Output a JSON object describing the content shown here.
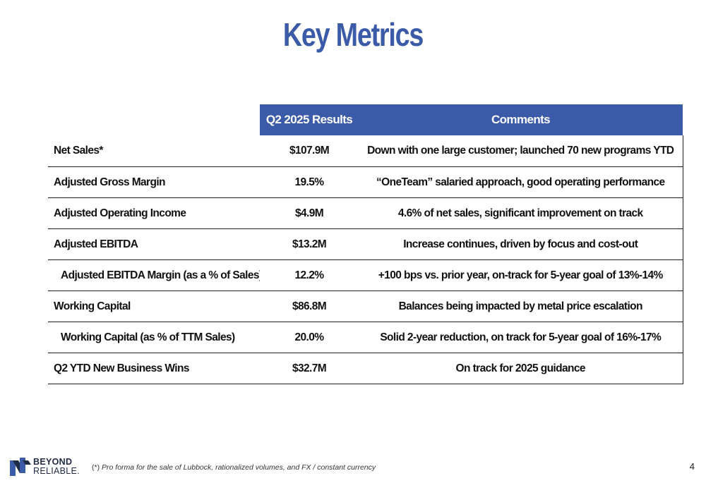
{
  "slide": {
    "title": "Key Metrics",
    "page_number": "4"
  },
  "table": {
    "headers": [
      "",
      "Q2 2025 Results",
      "Comments"
    ],
    "rows": [
      {
        "label": "Net Sales*",
        "value": "$107.9M",
        "comment": "Down with one large customer; launched 70 new programs YTD",
        "indent": false
      },
      {
        "label": "Adjusted Gross Margin",
        "value": "19.5%",
        "comment": "“OneTeam” salaried approach, good operating performance",
        "indent": false
      },
      {
        "label": "Adjusted Operating Income",
        "value": "$4.9M",
        "comment": "4.6% of net sales, significant improvement on track",
        "indent": false
      },
      {
        "label": "Adjusted EBITDA",
        "value": "$13.2M",
        "comment": "Increase continues, driven by focus and cost-out",
        "indent": false
      },
      {
        "label": "Adjusted EBITDA Margin (as a % of Sales)*",
        "value": "12.2%",
        "comment": "+100 bps vs. prior year, on-track for 5-year goal of 13%-14%",
        "indent": true
      },
      {
        "label": "Working Capital",
        "value": "$86.8M",
        "comment": "Balances being impacted by metal price escalation",
        "indent": false
      },
      {
        "label": "Working Capital (as % of TTM Sales)",
        "value": "20.0%",
        "comment": "Solid 2-year reduction, on track for 5-year goal of 16%-17%",
        "indent": true
      },
      {
        "label": "Q2 YTD New Business Wins",
        "value": "$32.7M",
        "comment": "On track for 2025 guidance",
        "indent": false
      }
    ]
  },
  "footer": {
    "logo_top": "BEYOND",
    "logo_bottom": "RELIABLE.",
    "footnote_mark": "(*)",
    "footnote_text": "Pro forma for the sale of Lubbock, rationalized volumes, and FX / constant currency"
  },
  "colors": {
    "accent": "#3b5ba9",
    "logo_blue": "#3b5ba9",
    "logo_navy": "#1f2a44"
  },
  "icons": {
    "logo": "beyond-reliable-logo-mark"
  }
}
